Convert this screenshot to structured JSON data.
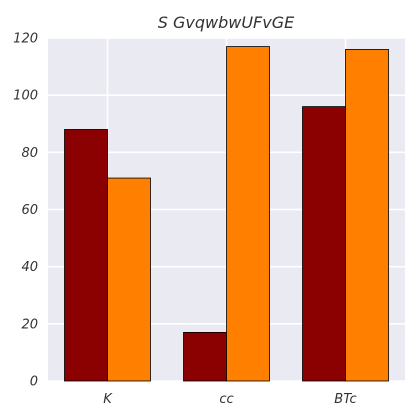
{
  "chart_data": {
    "type": "bar",
    "title": "S GvqwbwUFvGE",
    "xlabel": "",
    "ylabel": "",
    "categories": [
      "K",
      "cc",
      "BTc"
    ],
    "series": [
      {
        "color": "#8b0000",
        "values": [
          88,
          17,
          96
        ]
      },
      {
        "color": "#ff7f00",
        "values": [
          71,
          117,
          116
        ]
      }
    ],
    "ylim": [
      0,
      120
    ],
    "yticks": [
      0,
      20,
      40,
      60,
      80,
      100,
      120
    ],
    "grid": true,
    "background": "#eaeaf2",
    "legend": "none"
  }
}
